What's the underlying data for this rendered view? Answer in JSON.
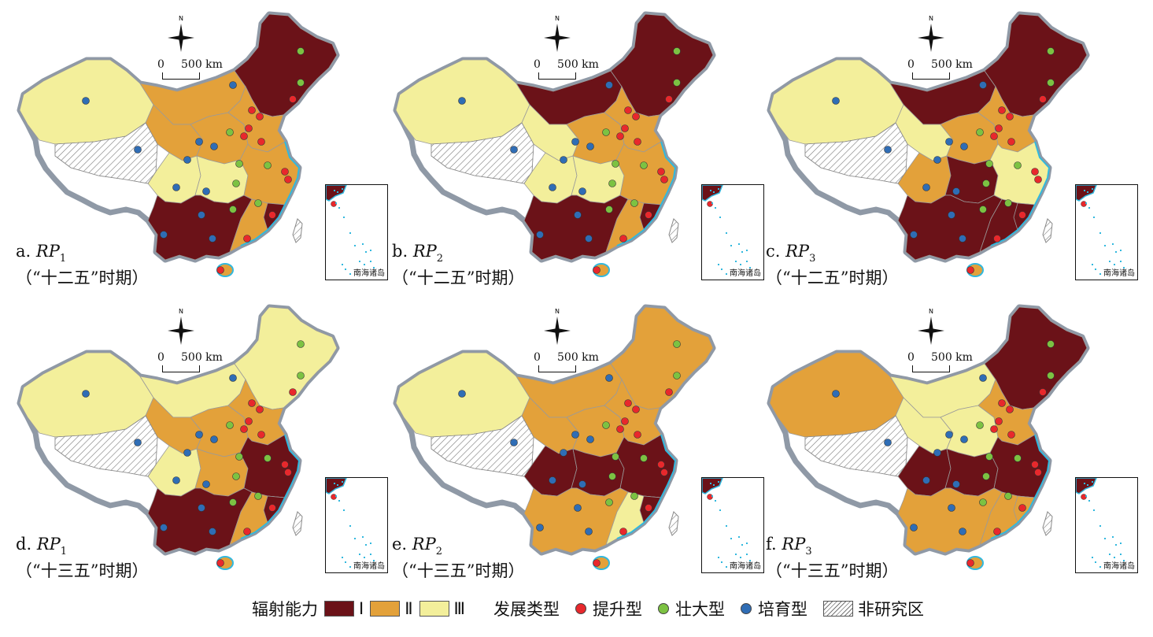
{
  "colors": {
    "class_I": "#6b1218",
    "class_II": "#e3a13a",
    "class_III": "#f3ef9b",
    "upgrade_dot": "#e8282c",
    "strengthen_dot": "#7cc242",
    "cultivate_dot": "#2f6db5",
    "border": "#8f99a6",
    "coast": "#31b8de"
  },
  "map_common": {
    "north_label": "N",
    "scale_zero": "0",
    "scale_length": "500 km",
    "inset_label": "南海诸岛"
  },
  "panels": [
    {
      "letter": "a.",
      "metric": "RP",
      "index": "1",
      "period": "（“十二五”时期）",
      "fills": [
        "III",
        "II",
        "I",
        "II",
        "II",
        "II",
        "II",
        "III",
        "III",
        "II",
        "I",
        "II",
        "I"
      ]
    },
    {
      "letter": "b.",
      "metric": "RP",
      "index": "2",
      "period": "（“十二五”时期）",
      "fills": [
        "III",
        "I",
        "I",
        "II",
        "III",
        "II",
        "II",
        "III",
        "III",
        "II",
        "I",
        "II",
        "I"
      ]
    },
    {
      "letter": "c.",
      "metric": "RP",
      "index": "3",
      "period": "（“十二五”时期）",
      "fills": [
        "III",
        "I",
        "I",
        "II",
        "III",
        "II",
        "II",
        "II",
        "I",
        "III",
        "I",
        "I",
        "I"
      ]
    },
    {
      "letter": "d.",
      "metric": "RP",
      "index": "1",
      "period": "（“十三五”时期）",
      "fills": [
        "III",
        "III",
        "III",
        "II",
        "II",
        "II",
        "II",
        "III",
        "II",
        "I",
        "I",
        "II",
        "I"
      ]
    },
    {
      "letter": "e.",
      "metric": "RP",
      "index": "2",
      "period": "（“十三五”时期）",
      "fills": [
        "III",
        "II",
        "II",
        "II",
        "II",
        "II",
        "II",
        "I",
        "I",
        "I",
        "II",
        "III",
        "I"
      ]
    },
    {
      "letter": "f.",
      "metric": "RP",
      "index": "3",
      "period": "（“十三五”时期）",
      "fills": [
        "II",
        "III",
        "I",
        "II",
        "III",
        "III",
        "II",
        "I",
        "I",
        "I",
        "II",
        "II",
        "II"
      ]
    }
  ],
  "legend": {
    "capacity_title": "辐射能力",
    "capacity_classes": [
      "Ⅰ",
      "Ⅱ",
      "Ⅲ"
    ],
    "type_title": "发展类型",
    "types": [
      "提升型",
      "壮大型",
      "培育型"
    ],
    "excluded_label": "非研究区"
  }
}
